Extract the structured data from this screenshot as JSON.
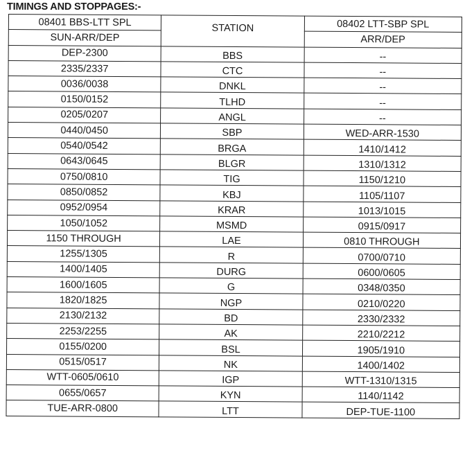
{
  "title": "TIMINGS AND STOPPAGES:-",
  "header": {
    "train1": "08401 BBS-LTT SPL",
    "train1_sub": "SUN-ARR/DEP",
    "station": "STATION",
    "train2": "08402 LTT-SBP SPL",
    "train2_sub": "ARR/DEP"
  },
  "rows": [
    {
      "t1": "DEP-2300",
      "station": "BBS",
      "t2": "--"
    },
    {
      "t1": "2335/2337",
      "station": "CTC",
      "t2": "--"
    },
    {
      "t1": "0036/0038",
      "station": "DNKL",
      "t2": "--"
    },
    {
      "t1": "0150/0152",
      "station": "TLHD",
      "t2": "--"
    },
    {
      "t1": "0205/0207",
      "station": "ANGL",
      "t2": "--"
    },
    {
      "t1": "0440/0450",
      "station": "SBP",
      "t2": "WED-ARR-1530"
    },
    {
      "t1": "0540/0542",
      "station": "BRGA",
      "t2": "1410/1412"
    },
    {
      "t1": "0643/0645",
      "station": "BLGR",
      "t2": "1310/1312"
    },
    {
      "t1": "0750/0810",
      "station": "TIG",
      "t2": "1150/1210"
    },
    {
      "t1": "0850/0852",
      "station": "KBJ",
      "t2": "1105/1107"
    },
    {
      "t1": "0952/0954",
      "station": "KRAR",
      "t2": "1013/1015"
    },
    {
      "t1": "1050/1052",
      "station": "MSMD",
      "t2": "0915/0917"
    },
    {
      "t1": "1150 THROUGH",
      "station": "LAE",
      "t2": "0810 THROUGH"
    },
    {
      "t1": "1255/1305",
      "station": "R",
      "t2": "0700/0710"
    },
    {
      "t1": "1400/1405",
      "station": "DURG",
      "t2": "0600/0605"
    },
    {
      "t1": "1600/1605",
      "station": "G",
      "t2": "0348/0350"
    },
    {
      "t1": "1820/1825",
      "station": "NGP",
      "t2": "0210/0220"
    },
    {
      "t1": "2130/2132",
      "station": "BD",
      "t2": "2330/2332"
    },
    {
      "t1": "2253/2255",
      "station": "AK",
      "t2": "2210/2212"
    },
    {
      "t1": "0155/0200",
      "station": "BSL",
      "t2": "1905/1910"
    },
    {
      "t1": "0515/0517",
      "station": "NK",
      "t2": "1400/1402"
    },
    {
      "t1": "WTT-0605/0610",
      "station": "IGP",
      "t2": "WTT-1310/1315"
    },
    {
      "t1": "0655/0657",
      "station": "KYN",
      "t2": "1140/1142"
    },
    {
      "t1": "TUE-ARR-0800",
      "station": "LTT",
      "t2": "DEP-TUE-1100"
    }
  ]
}
